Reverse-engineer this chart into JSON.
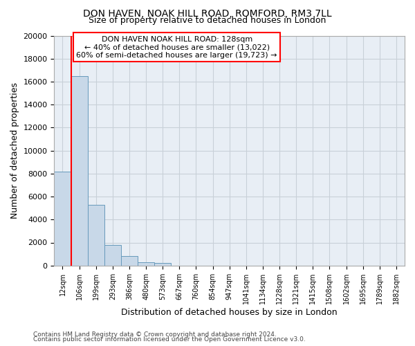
{
  "title": "DON HAVEN, NOAK HILL ROAD, ROMFORD, RM3 7LL",
  "subtitle": "Size of property relative to detached houses in London",
  "xlabel": "Distribution of detached houses by size in London",
  "ylabel": "Number of detached properties",
  "categories": [
    "12sqm",
    "106sqm",
    "199sqm",
    "293sqm",
    "386sqm",
    "480sqm",
    "573sqm",
    "667sqm",
    "760sqm",
    "854sqm",
    "947sqm",
    "1041sqm",
    "1134sqm",
    "1228sqm",
    "1321sqm",
    "1415sqm",
    "1508sqm",
    "1602sqm",
    "1695sqm",
    "1789sqm",
    "1882sqm"
  ],
  "values": [
    8200,
    16500,
    5300,
    1800,
    800,
    300,
    250,
    0,
    0,
    0,
    0,
    0,
    0,
    0,
    0,
    0,
    0,
    0,
    0,
    0,
    0
  ],
  "bar_color": "#c8d8e8",
  "bar_edge_color": "#6699bb",
  "red_line_x": 1.5,
  "ylim": [
    0,
    20000
  ],
  "yticks": [
    0,
    2000,
    4000,
    6000,
    8000,
    10000,
    12000,
    14000,
    16000,
    18000,
    20000
  ],
  "annotation_title": "DON HAVEN NOAK HILL ROAD: 128sqm",
  "annotation_line1": "← 40% of detached houses are smaller (13,022)",
  "annotation_line2": "60% of semi-detached houses are larger (19,723) →",
  "footer1": "Contains HM Land Registry data © Crown copyright and database right 2024.",
  "footer2": "Contains public sector information licensed under the Open Government Licence v3.0.",
  "bg_color": "#ffffff",
  "plot_bg_color": "#e8eef5",
  "grid_color": "#c8d0d8",
  "title_fontsize": 10,
  "subtitle_fontsize": 9
}
